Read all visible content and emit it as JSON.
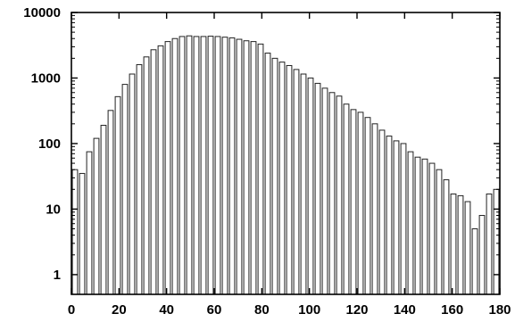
{
  "chart_data": {
    "type": "bar",
    "title": "",
    "xlabel": "",
    "ylabel": "",
    "y_scale": "log",
    "xlim": [
      0,
      180
    ],
    "ylim": [
      0.5,
      10000
    ],
    "grid": false,
    "x_ticks": [
      "0",
      "20",
      "40",
      "60",
      "80",
      "100",
      "120",
      "140",
      "160",
      "180"
    ],
    "y_ticks": [
      "1",
      "10",
      "100",
      "1000",
      "10000"
    ],
    "x": [
      0,
      3,
      6,
      9,
      12,
      15,
      18,
      21,
      24,
      27,
      30,
      33,
      36,
      39,
      42,
      45,
      48,
      51,
      54,
      57,
      60,
      63,
      66,
      69,
      72,
      75,
      78,
      81,
      84,
      87,
      90,
      93,
      96,
      99,
      102,
      105,
      108,
      111,
      114,
      117,
      120,
      123,
      126,
      129,
      132,
      135,
      138,
      141,
      144,
      147,
      150,
      153,
      156,
      159,
      162,
      165,
      168,
      171,
      174,
      177
    ],
    "values": [
      40,
      35,
      75,
      120,
      190,
      320,
      520,
      800,
      1150,
      1600,
      2100,
      2700,
      3100,
      3600,
      4000,
      4300,
      4400,
      4300,
      4300,
      4350,
      4300,
      4200,
      4100,
      3900,
      3700,
      3600,
      3300,
      2400,
      2000,
      1750,
      1550,
      1350,
      1150,
      1000,
      830,
      700,
      600,
      530,
      400,
      330,
      300,
      250,
      200,
      160,
      130,
      110,
      100,
      75,
      62,
      58,
      50,
      40,
      28,
      17,
      16,
      13,
      5,
      8,
      17,
      20
    ]
  }
}
